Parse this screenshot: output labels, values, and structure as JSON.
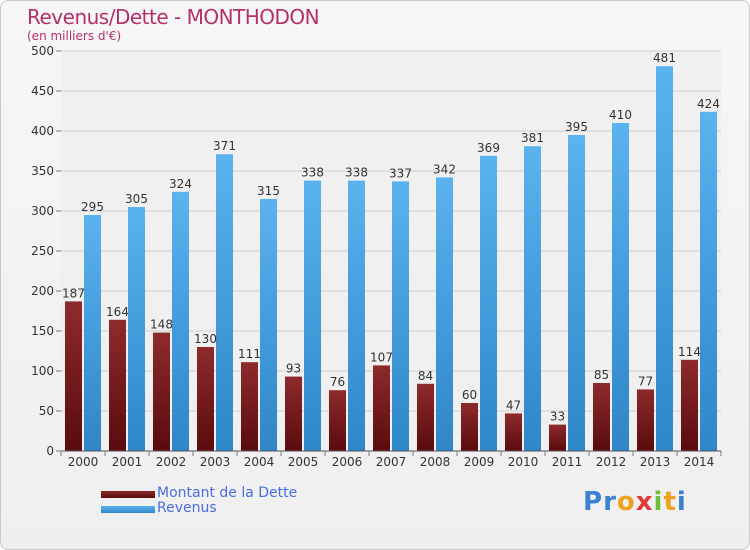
{
  "chart_data": {
    "type": "bar",
    "title": "Revenus/Dette - MONTHODON",
    "subtitle": "(en milliers d'€)",
    "categories": [
      "2000",
      "2001",
      "2002",
      "2003",
      "2004",
      "2005",
      "2006",
      "2007",
      "2008",
      "2009",
      "2010",
      "2011",
      "2012",
      "2013",
      "2014"
    ],
    "series": [
      {
        "name": "Montant de la Dette",
        "color": "#7a1518",
        "values": [
          187,
          164,
          148,
          130,
          111,
          93,
          76,
          107,
          84,
          60,
          47,
          33,
          85,
          77,
          114
        ]
      },
      {
        "name": "Revenus",
        "color": "#4aa3e6",
        "values": [
          295,
          305,
          324,
          371,
          315,
          338,
          338,
          337,
          342,
          369,
          381,
          395,
          410,
          481,
          424
        ]
      }
    ],
    "ylim": [
      0,
      500
    ],
    "yticks": [
      0,
      50,
      100,
      150,
      200,
      250,
      300,
      350,
      400,
      450,
      500
    ],
    "grid": true,
    "legend_position": "bottom-left"
  },
  "legend": {
    "dette_label": "Montant de la Dette",
    "revenus_label": "Revenus"
  },
  "brand": {
    "letters": [
      "P",
      "r",
      "o",
      "x",
      "i",
      "t",
      "i"
    ],
    "colors": [
      "#3d7fd1",
      "#3d7fd1",
      "#f0a020",
      "#e23a3a",
      "#6cbf3a",
      "#f0a020",
      "#3d7fd1"
    ]
  }
}
